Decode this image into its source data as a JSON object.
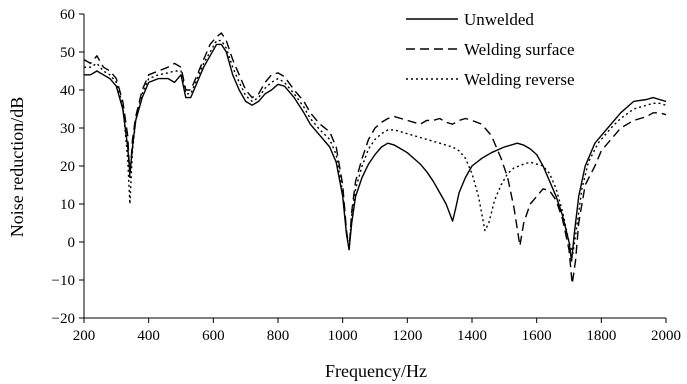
{
  "chart_data": {
    "type": "line",
    "title": "",
    "xlabel": "Frequency/Hz",
    "ylabel": "Noise reduction/dB",
    "xlim": [
      200,
      2000
    ],
    "ylim": [
      -20,
      60
    ],
    "xticks": [
      200,
      400,
      600,
      800,
      1000,
      1200,
      1400,
      1600,
      1800,
      2000
    ],
    "yticks": [
      -20,
      -10,
      0,
      10,
      20,
      30,
      40,
      50,
      60
    ],
    "grid": false,
    "legend_position": "top-right",
    "series": [
      {
        "name": "Unwelded",
        "style": "solid",
        "color": "#000000",
        "points": [
          [
            200,
            44
          ],
          [
            220,
            44
          ],
          [
            240,
            45
          ],
          [
            260,
            44
          ],
          [
            280,
            43
          ],
          [
            300,
            41
          ],
          [
            320,
            35
          ],
          [
            335,
            25
          ],
          [
            342,
            18
          ],
          [
            350,
            25
          ],
          [
            360,
            32
          ],
          [
            380,
            38
          ],
          [
            400,
            42
          ],
          [
            430,
            43
          ],
          [
            460,
            43
          ],
          [
            480,
            42
          ],
          [
            500,
            44
          ],
          [
            515,
            38
          ],
          [
            530,
            38
          ],
          [
            550,
            42
          ],
          [
            570,
            46
          ],
          [
            590,
            49
          ],
          [
            610,
            52
          ],
          [
            625,
            52
          ],
          [
            640,
            50
          ],
          [
            660,
            44
          ],
          [
            680,
            40
          ],
          [
            700,
            37
          ],
          [
            720,
            36
          ],
          [
            740,
            37
          ],
          [
            760,
            39
          ],
          [
            780,
            40
          ],
          [
            800,
            41.5
          ],
          [
            820,
            41
          ],
          [
            850,
            38
          ],
          [
            880,
            34
          ],
          [
            900,
            31
          ],
          [
            930,
            28
          ],
          [
            960,
            25
          ],
          [
            980,
            21
          ],
          [
            1000,
            12
          ],
          [
            1012,
            2
          ],
          [
            1020,
            -2
          ],
          [
            1028,
            5
          ],
          [
            1040,
            12
          ],
          [
            1060,
            17
          ],
          [
            1080,
            20.5
          ],
          [
            1100,
            23
          ],
          [
            1120,
            25
          ],
          [
            1140,
            26
          ],
          [
            1160,
            25.5
          ],
          [
            1180,
            24.5
          ],
          [
            1200,
            23.5
          ],
          [
            1220,
            22
          ],
          [
            1240,
            20.5
          ],
          [
            1260,
            18.5
          ],
          [
            1280,
            16
          ],
          [
            1300,
            13
          ],
          [
            1320,
            10
          ],
          [
            1340,
            5.5
          ],
          [
            1350,
            9
          ],
          [
            1360,
            13
          ],
          [
            1380,
            17
          ],
          [
            1400,
            20
          ],
          [
            1430,
            22
          ],
          [
            1460,
            23.5
          ],
          [
            1500,
            25
          ],
          [
            1540,
            26
          ],
          [
            1560,
            25.5
          ],
          [
            1580,
            24.5
          ],
          [
            1600,
            23
          ],
          [
            1620,
            20
          ],
          [
            1640,
            16
          ],
          [
            1660,
            12
          ],
          [
            1680,
            7
          ],
          [
            1700,
            0
          ],
          [
            1708,
            -5
          ],
          [
            1716,
            2
          ],
          [
            1730,
            12
          ],
          [
            1750,
            20
          ],
          [
            1780,
            26
          ],
          [
            1800,
            28
          ],
          [
            1830,
            31
          ],
          [
            1860,
            34
          ],
          [
            1900,
            37
          ],
          [
            1940,
            37.5
          ],
          [
            1960,
            38
          ],
          [
            1980,
            37.5
          ],
          [
            2000,
            37
          ]
        ]
      },
      {
        "name": "Welding surface",
        "style": "dashed",
        "color": "#000000",
        "points": [
          [
            200,
            48
          ],
          [
            220,
            47
          ],
          [
            240,
            49
          ],
          [
            260,
            46
          ],
          [
            280,
            45
          ],
          [
            300,
            43
          ],
          [
            320,
            37
          ],
          [
            335,
            28
          ],
          [
            342,
            17
          ],
          [
            350,
            27
          ],
          [
            360,
            33
          ],
          [
            380,
            40
          ],
          [
            400,
            44
          ],
          [
            430,
            45
          ],
          [
            460,
            46
          ],
          [
            480,
            47
          ],
          [
            500,
            46
          ],
          [
            515,
            40
          ],
          [
            530,
            40
          ],
          [
            550,
            44
          ],
          [
            570,
            48
          ],
          [
            590,
            52
          ],
          [
            610,
            54
          ],
          [
            625,
            55
          ],
          [
            640,
            53
          ],
          [
            660,
            48
          ],
          [
            680,
            44
          ],
          [
            700,
            40
          ],
          [
            720,
            38
          ],
          [
            740,
            39
          ],
          [
            760,
            42
          ],
          [
            780,
            44
          ],
          [
            800,
            44.5
          ],
          [
            820,
            43.5
          ],
          [
            850,
            40
          ],
          [
            880,
            37
          ],
          [
            900,
            34
          ],
          [
            930,
            31
          ],
          [
            960,
            29
          ],
          [
            980,
            25
          ],
          [
            1000,
            15
          ],
          [
            1012,
            3
          ],
          [
            1020,
            -2
          ],
          [
            1028,
            8
          ],
          [
            1040,
            16
          ],
          [
            1060,
            22
          ],
          [
            1080,
            27
          ],
          [
            1100,
            30
          ],
          [
            1120,
            31.5
          ],
          [
            1140,
            32.5
          ],
          [
            1160,
            33
          ],
          [
            1180,
            32.5
          ],
          [
            1200,
            32
          ],
          [
            1220,
            31.5
          ],
          [
            1240,
            31
          ],
          [
            1260,
            32
          ],
          [
            1280,
            32
          ],
          [
            1300,
            32.5
          ],
          [
            1320,
            31.5
          ],
          [
            1340,
            31
          ],
          [
            1360,
            32
          ],
          [
            1380,
            32.5
          ],
          [
            1400,
            32
          ],
          [
            1430,
            31
          ],
          [
            1460,
            28
          ],
          [
            1490,
            22
          ],
          [
            1510,
            17
          ],
          [
            1530,
            9
          ],
          [
            1548,
            -1
          ],
          [
            1560,
            5
          ],
          [
            1580,
            10
          ],
          [
            1600,
            12
          ],
          [
            1620,
            14
          ],
          [
            1640,
            13.5
          ],
          [
            1660,
            11
          ],
          [
            1680,
            6
          ],
          [
            1700,
            -2
          ],
          [
            1710,
            -11
          ],
          [
            1720,
            -5
          ],
          [
            1730,
            5
          ],
          [
            1750,
            15
          ],
          [
            1780,
            20
          ],
          [
            1800,
            24
          ],
          [
            1830,
            27
          ],
          [
            1860,
            30
          ],
          [
            1900,
            32
          ],
          [
            1940,
            33
          ],
          [
            1960,
            34
          ],
          [
            1980,
            34
          ],
          [
            2000,
            33.5
          ]
        ]
      },
      {
        "name": "Welding reverse",
        "style": "dotted",
        "color": "#000000",
        "points": [
          [
            200,
            46
          ],
          [
            220,
            46
          ],
          [
            240,
            47
          ],
          [
            260,
            45
          ],
          [
            280,
            44
          ],
          [
            300,
            42
          ],
          [
            320,
            36
          ],
          [
            335,
            22
          ],
          [
            342,
            10
          ],
          [
            350,
            24
          ],
          [
            360,
            32
          ],
          [
            380,
            39
          ],
          [
            400,
            43
          ],
          [
            430,
            44
          ],
          [
            460,
            44.5
          ],
          [
            480,
            45
          ],
          [
            500,
            45
          ],
          [
            515,
            39
          ],
          [
            530,
            39
          ],
          [
            550,
            43
          ],
          [
            570,
            47
          ],
          [
            590,
            50
          ],
          [
            610,
            53
          ],
          [
            625,
            53
          ],
          [
            640,
            51
          ],
          [
            660,
            46
          ],
          [
            680,
            42
          ],
          [
            700,
            38.5
          ],
          [
            720,
            37
          ],
          [
            740,
            38
          ],
          [
            760,
            40.5
          ],
          [
            780,
            42
          ],
          [
            800,
            43
          ],
          [
            820,
            42
          ],
          [
            850,
            39
          ],
          [
            880,
            35.5
          ],
          [
            900,
            32.5
          ],
          [
            930,
            29.5
          ],
          [
            960,
            27
          ],
          [
            980,
            23
          ],
          [
            1000,
            13
          ],
          [
            1012,
            2
          ],
          [
            1020,
            -1.5
          ],
          [
            1028,
            7
          ],
          [
            1040,
            14
          ],
          [
            1060,
            20
          ],
          [
            1080,
            24.5
          ],
          [
            1100,
            27
          ],
          [
            1120,
            28.5
          ],
          [
            1140,
            29.5
          ],
          [
            1160,
            29.5
          ],
          [
            1180,
            29
          ],
          [
            1200,
            28.5
          ],
          [
            1220,
            28
          ],
          [
            1240,
            27.5
          ],
          [
            1260,
            27
          ],
          [
            1280,
            26.5
          ],
          [
            1300,
            26
          ],
          [
            1320,
            25.5
          ],
          [
            1340,
            25
          ],
          [
            1360,
            24
          ],
          [
            1380,
            22
          ],
          [
            1400,
            18
          ],
          [
            1420,
            12
          ],
          [
            1440,
            3
          ],
          [
            1452,
            5
          ],
          [
            1470,
            11
          ],
          [
            1490,
            15
          ],
          [
            1510,
            18
          ],
          [
            1530,
            19.5
          ],
          [
            1560,
            20.5
          ],
          [
            1580,
            21
          ],
          [
            1600,
            20.5
          ],
          [
            1620,
            20
          ],
          [
            1640,
            18
          ],
          [
            1660,
            14
          ],
          [
            1680,
            8
          ],
          [
            1700,
            0
          ],
          [
            1712,
            -3
          ],
          [
            1724,
            4
          ],
          [
            1740,
            14
          ],
          [
            1760,
            21
          ],
          [
            1790,
            26
          ],
          [
            1800,
            27
          ],
          [
            1830,
            30
          ],
          [
            1860,
            32.5
          ],
          [
            1900,
            35
          ],
          [
            1940,
            36
          ],
          [
            1960,
            36.5
          ],
          [
            1980,
            36.5
          ],
          [
            2000,
            36
          ]
        ]
      }
    ]
  }
}
